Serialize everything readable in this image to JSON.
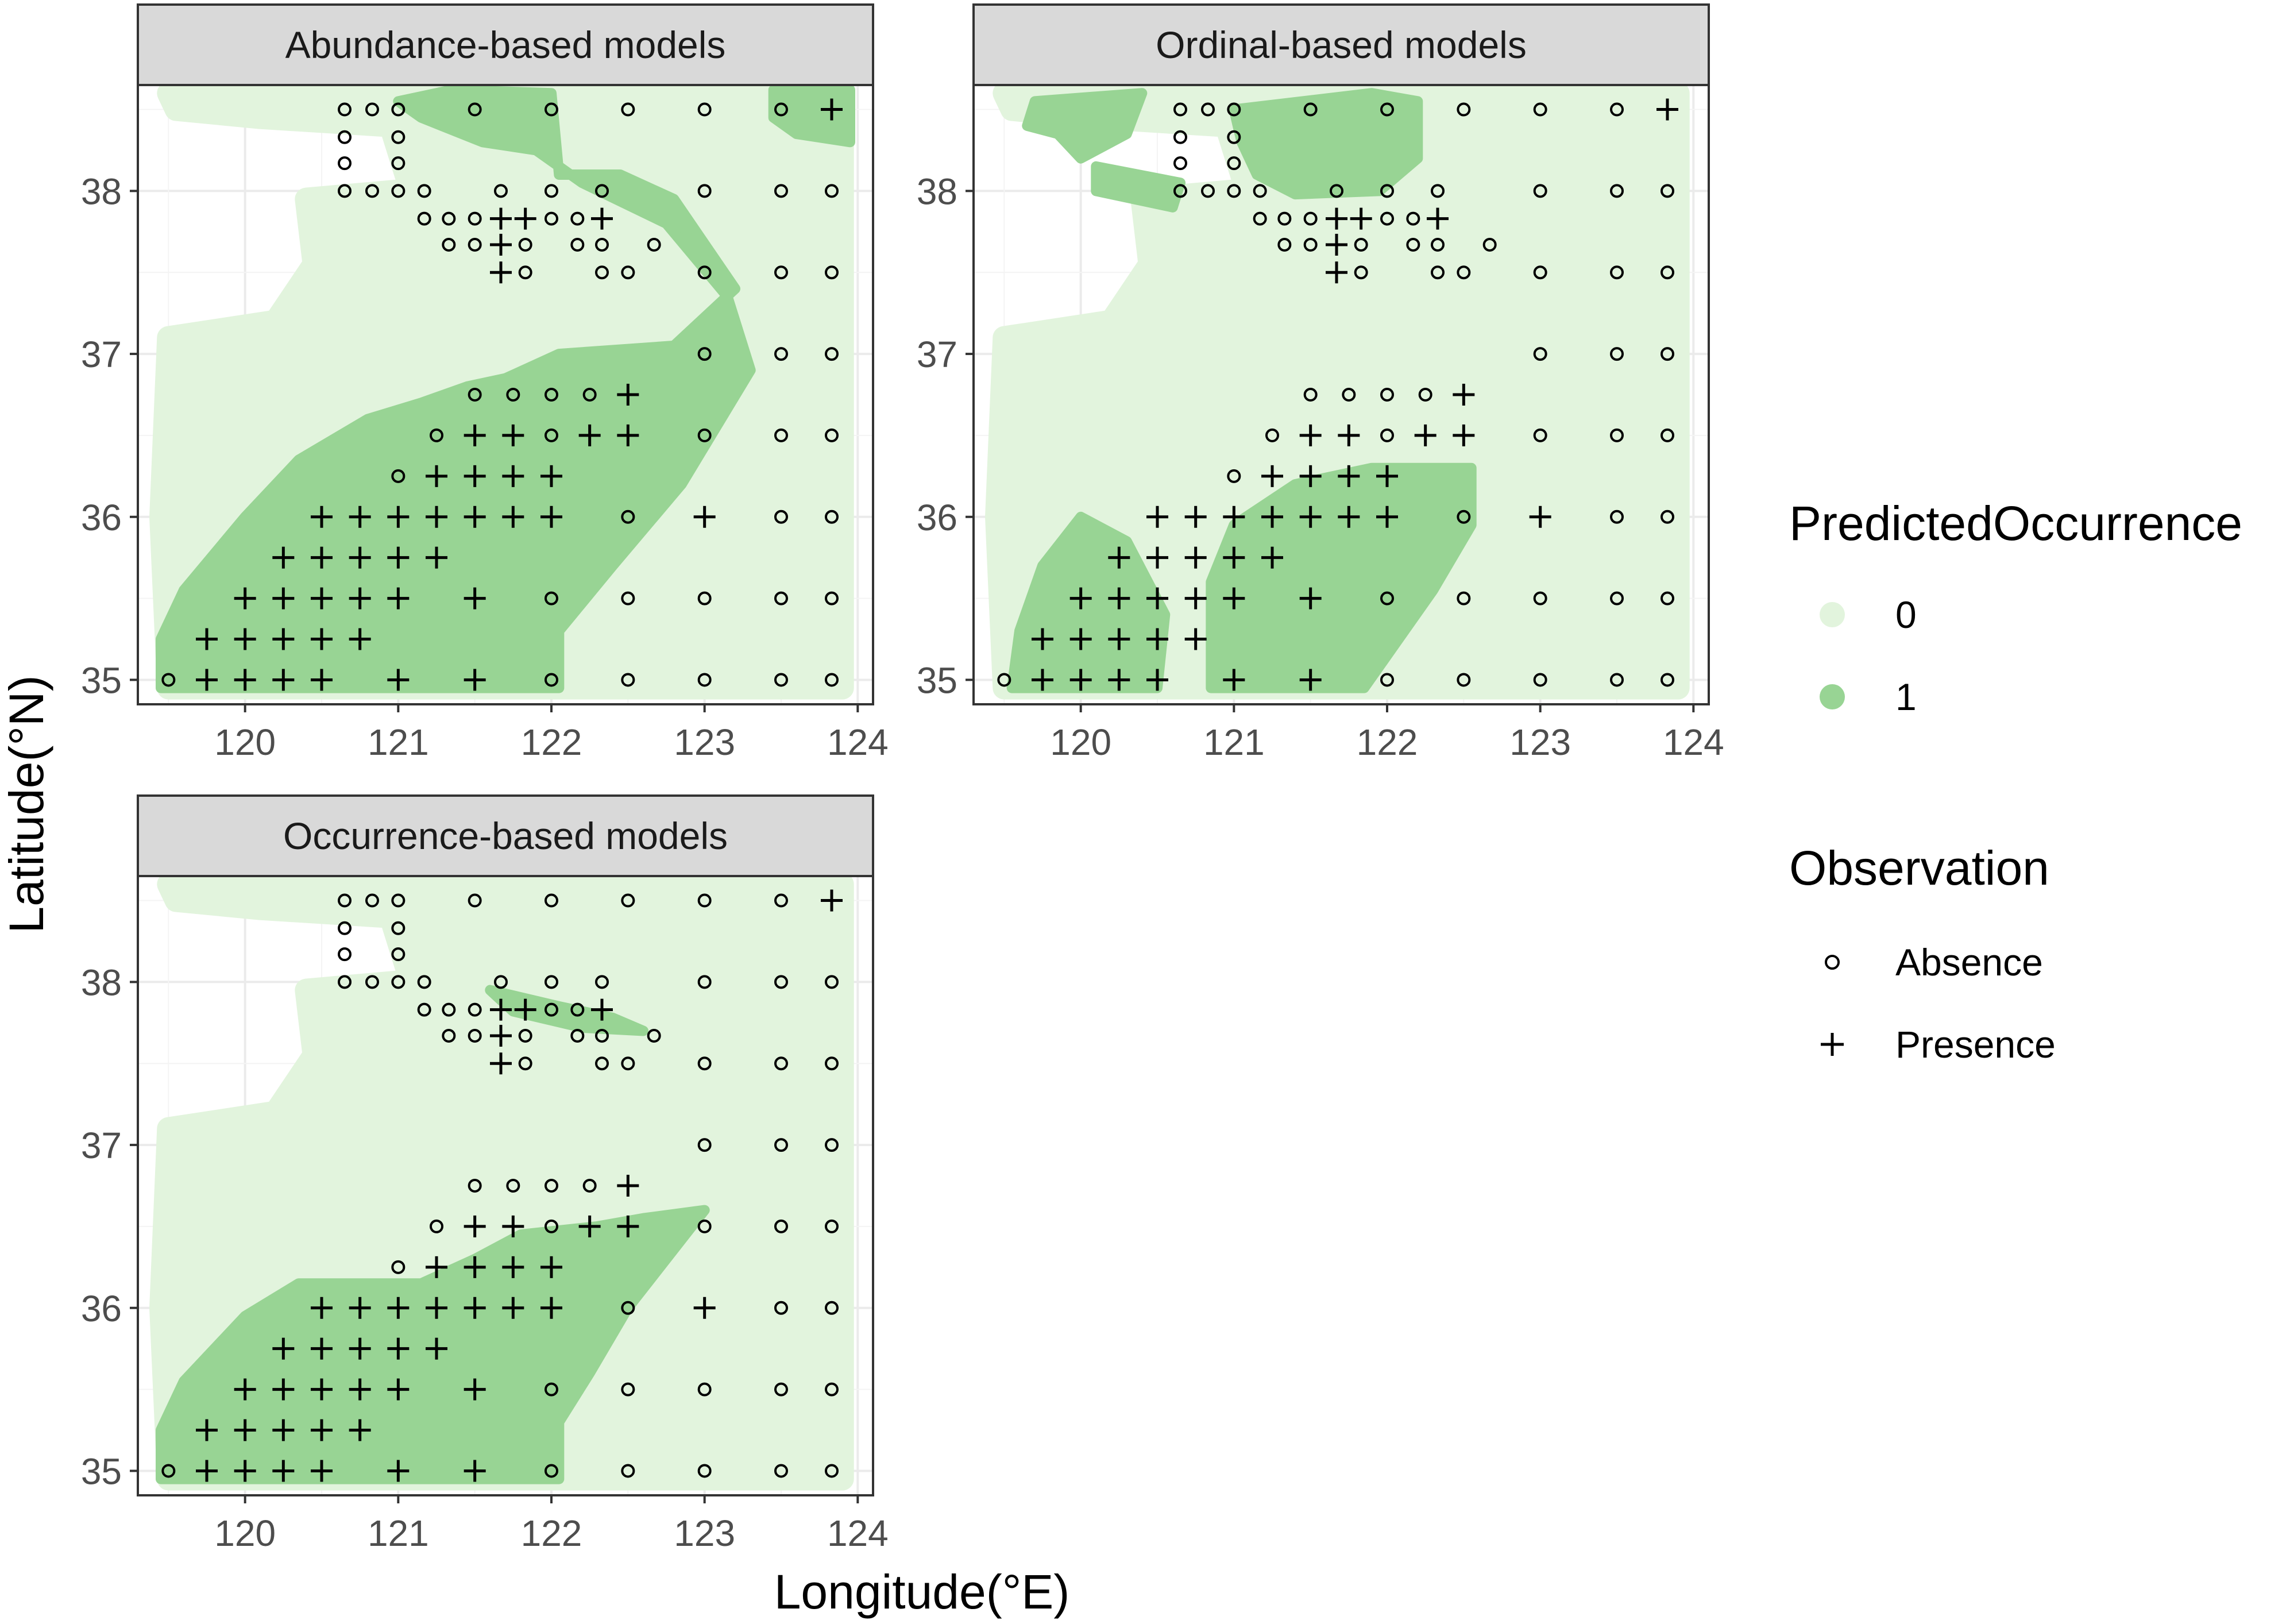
{
  "chart_data": {
    "type": "scatter",
    "facets": [
      {
        "id": "abundance",
        "title": "Abundance-based models"
      },
      {
        "id": "ordinal",
        "title": "Ordinal-based models"
      },
      {
        "id": "occurrence",
        "title": "Occurrence-based models"
      }
    ],
    "xlabel": "Longitude(°E)",
    "ylabel": "Latitude(°N)",
    "xlim": [
      119.3,
      124.1
    ],
    "ylim": [
      34.85,
      38.65
    ],
    "x_ticks": [
      120,
      121,
      122,
      123,
      124
    ],
    "y_ticks": [
      35,
      36,
      37,
      38
    ],
    "grid": true,
    "colors": {
      "predicted_0": "#e2f4dd",
      "predicted_1": "#98d494",
      "strip_fill": "#d9d9d9",
      "grid_major": "#ebebeb",
      "panel_border": "#333333",
      "marker": "#000000"
    },
    "legend": {
      "position": "right",
      "predicted": {
        "title": "PredictedOccurrence",
        "entries": [
          {
            "label": "0",
            "color": "#e2f4dd"
          },
          {
            "label": "1",
            "color": "#98d494"
          }
        ]
      },
      "observation": {
        "title": "Observation",
        "entries": [
          {
            "label": "Absence",
            "shape": "open-circle"
          },
          {
            "label": "Presence",
            "shape": "plus"
          }
        ]
      }
    },
    "observations": {
      "absence": [
        [
          120.65,
          38.5
        ],
        [
          120.83,
          38.5
        ],
        [
          121,
          38.5
        ],
        [
          121.5,
          38.5
        ],
        [
          122,
          38.5
        ],
        [
          122.5,
          38.5
        ],
        [
          123,
          38.5
        ],
        [
          123.5,
          38.5
        ],
        [
          120.65,
          38.33
        ],
        [
          121,
          38.33
        ],
        [
          120.65,
          38.17
        ],
        [
          121,
          38.17
        ],
        [
          120.65,
          38
        ],
        [
          120.83,
          38
        ],
        [
          121,
          38
        ],
        [
          121.17,
          38
        ],
        [
          121.67,
          38
        ],
        [
          122,
          38
        ],
        [
          122.33,
          38
        ],
        [
          123,
          38
        ],
        [
          123.5,
          38
        ],
        [
          123.83,
          38
        ],
        [
          121.17,
          37.83
        ],
        [
          121.33,
          37.83
        ],
        [
          121.5,
          37.83
        ],
        [
          122,
          37.83
        ],
        [
          122.17,
          37.83
        ],
        [
          121.33,
          37.67
        ],
        [
          121.5,
          37.67
        ],
        [
          121.83,
          37.67
        ],
        [
          122.17,
          37.67
        ],
        [
          122.33,
          37.67
        ],
        [
          122.67,
          37.67
        ],
        [
          121.83,
          37.5
        ],
        [
          122.33,
          37.5
        ],
        [
          122.5,
          37.5
        ],
        [
          123,
          37.5
        ],
        [
          123.5,
          37.5
        ],
        [
          123.83,
          37.5
        ],
        [
          123,
          37
        ],
        [
          123.5,
          37
        ],
        [
          123.83,
          37
        ],
        [
          121.5,
          36.75
        ],
        [
          121.75,
          36.75
        ],
        [
          122,
          36.75
        ],
        [
          122.25,
          36.75
        ],
        [
          121.25,
          36.5
        ],
        [
          122,
          36.5
        ],
        [
          123,
          36.5
        ],
        [
          123.5,
          36.5
        ],
        [
          123.83,
          36.5
        ],
        [
          121,
          36.25
        ],
        [
          122.5,
          36
        ],
        [
          123.5,
          36
        ],
        [
          123.83,
          36
        ],
        [
          122,
          35.5
        ],
        [
          122.5,
          35.5
        ],
        [
          123,
          35.5
        ],
        [
          123.5,
          35.5
        ],
        [
          123.83,
          35.5
        ],
        [
          119.5,
          35
        ],
        [
          122,
          35
        ],
        [
          122.5,
          35
        ],
        [
          123,
          35
        ],
        [
          123.5,
          35
        ],
        [
          123.83,
          35
        ]
      ],
      "presence": [
        [
          123.83,
          38.5
        ],
        [
          121.67,
          37.83
        ],
        [
          121.83,
          37.83
        ],
        [
          122.33,
          37.83
        ],
        [
          121.67,
          37.67
        ],
        [
          121.67,
          37.5
        ],
        [
          122.5,
          36.75
        ],
        [
          121.5,
          36.5
        ],
        [
          121.75,
          36.5
        ],
        [
          122.25,
          36.5
        ],
        [
          122.5,
          36.5
        ],
        [
          121.25,
          36.25
        ],
        [
          121.5,
          36.25
        ],
        [
          121.75,
          36.25
        ],
        [
          122,
          36.25
        ],
        [
          120.5,
          36
        ],
        [
          120.75,
          36
        ],
        [
          121,
          36
        ],
        [
          121.25,
          36
        ],
        [
          121.5,
          36
        ],
        [
          121.75,
          36
        ],
        [
          122,
          36
        ],
        [
          123,
          36
        ],
        [
          120.25,
          35.75
        ],
        [
          120.5,
          35.75
        ],
        [
          120.75,
          35.75
        ],
        [
          121,
          35.75
        ],
        [
          121.25,
          35.75
        ],
        [
          120,
          35.5
        ],
        [
          120.25,
          35.5
        ],
        [
          120.5,
          35.5
        ],
        [
          120.75,
          35.5
        ],
        [
          121,
          35.5
        ],
        [
          121.5,
          35.5
        ],
        [
          119.75,
          35.25
        ],
        [
          120,
          35.25
        ],
        [
          120.25,
          35.25
        ],
        [
          120.5,
          35.25
        ],
        [
          120.75,
          35.25
        ],
        [
          119.75,
          35
        ],
        [
          120,
          35
        ],
        [
          120.25,
          35
        ],
        [
          120.5,
          35
        ],
        [
          121,
          35
        ],
        [
          121.5,
          35
        ]
      ]
    },
    "predicted_regions": {
      "abundance": {
        "class0": [
          [
            [
              119.5,
              38.6
            ],
            [
              123.9,
              38.6
            ],
            [
              123.9,
              34.95
            ],
            [
              119.5,
              34.95
            ],
            [
              119.45,
              36.0
            ],
            [
              119.5,
              37.1
            ],
            [
              120.2,
              37.2
            ],
            [
              120.45,
              37.55
            ],
            [
              120.4,
              37.95
            ],
            [
              121.0,
              38.0
            ],
            [
              121.1,
              37.95
            ],
            [
              120.95,
              38.4
            ],
            [
              120.1,
              38.45
            ],
            [
              119.55,
              38.5
            ]
          ]
        ],
        "class1": [
          [
            [
              119.45,
              34.95
            ],
            [
              122.05,
              34.95
            ],
            [
              122.05,
              35.3
            ],
            [
              122.4,
              35.7
            ],
            [
              122.85,
              36.2
            ],
            [
              123.3,
              36.9
            ],
            [
              123.15,
              37.35
            ],
            [
              122.75,
              37.8
            ],
            [
              122.2,
              38.05
            ],
            [
              121.9,
              38.25
            ],
            [
              121.55,
              38.3
            ],
            [
              121.15,
              38.45
            ],
            [
              121.0,
              38.55
            ],
            [
              121.35,
              38.62
            ],
            [
              122.0,
              38.6
            ],
            [
              122.05,
              38.1
            ],
            [
              122.45,
              38.1
            ],
            [
              122.8,
              37.95
            ],
            [
              123.2,
              37.4
            ],
            [
              122.8,
              37.05
            ],
            [
              122.05,
              37.0
            ],
            [
              121.7,
              36.85
            ],
            [
              121.45,
              36.8
            ],
            [
              121.15,
              36.7
            ],
            [
              120.8,
              36.6
            ],
            [
              120.35,
              36.35
            ],
            [
              120.0,
              36.0
            ],
            [
              119.6,
              35.55
            ],
            [
              119.45,
              35.25
            ]
          ],
          [
            [
              123.45,
              38.62
            ],
            [
              123.95,
              38.62
            ],
            [
              123.95,
              38.3
            ],
            [
              123.6,
              38.35
            ],
            [
              123.45,
              38.45
            ]
          ]
        ]
      },
      "ordinal": {
        "class0": [
          [
            [
              119.5,
              38.6
            ],
            [
              123.9,
              38.6
            ],
            [
              123.9,
              34.95
            ],
            [
              119.5,
              34.95
            ],
            [
              119.45,
              36.0
            ],
            [
              119.5,
              37.1
            ],
            [
              120.2,
              37.2
            ],
            [
              120.45,
              37.55
            ],
            [
              120.4,
              37.95
            ],
            [
              121.0,
              38.0
            ],
            [
              121.1,
              37.95
            ],
            [
              120.95,
              38.4
            ],
            [
              120.1,
              38.45
            ],
            [
              119.55,
              38.5
            ]
          ]
        ],
        "class1": [
          [
            [
              119.7,
              38.55
            ],
            [
              120.4,
              38.6
            ],
            [
              120.3,
              38.35
            ],
            [
              120.0,
              38.2
            ],
            [
              119.85,
              38.35
            ],
            [
              119.65,
              38.4
            ]
          ],
          [
            [
              120.1,
              38.15
            ],
            [
              120.65,
              38.05
            ],
            [
              120.6,
              37.9
            ],
            [
              120.1,
              38.0
            ]
          ],
          [
            [
              121.0,
              38.5
            ],
            [
              121.9,
              38.6
            ],
            [
              122.2,
              38.55
            ],
            [
              122.2,
              38.2
            ],
            [
              121.95,
              38.0
            ],
            [
              121.4,
              37.98
            ],
            [
              121.15,
              38.1
            ],
            [
              121.05,
              38.3
            ]
          ],
          [
            [
              120.85,
              34.95
            ],
            [
              121.85,
              34.95
            ],
            [
              122.3,
              35.55
            ],
            [
              122.55,
              35.95
            ],
            [
              122.55,
              36.3
            ],
            [
              121.9,
              36.3
            ],
            [
              121.4,
              36.2
            ],
            [
              121.0,
              35.95
            ],
            [
              120.85,
              35.6
            ]
          ],
          [
            [
              119.55,
              34.95
            ],
            [
              120.5,
              34.95
            ],
            [
              120.55,
              35.4
            ],
            [
              120.3,
              35.85
            ],
            [
              120.0,
              36.0
            ],
            [
              119.75,
              35.7
            ],
            [
              119.6,
              35.3
            ]
          ]
        ]
      },
      "occurrence": {
        "class0": [
          [
            [
              119.5,
              38.6
            ],
            [
              123.9,
              38.6
            ],
            [
              123.9,
              34.95
            ],
            [
              119.5,
              34.95
            ],
            [
              119.45,
              36.0
            ],
            [
              119.5,
              37.1
            ],
            [
              120.2,
              37.2
            ],
            [
              120.45,
              37.55
            ],
            [
              120.4,
              37.95
            ],
            [
              121.0,
              38.0
            ],
            [
              121.1,
              37.95
            ],
            [
              120.95,
              38.4
            ],
            [
              120.1,
              38.45
            ],
            [
              119.55,
              38.5
            ]
          ]
        ],
        "class1": [
          [
            [
              119.45,
              34.95
            ],
            [
              122.05,
              34.95
            ],
            [
              122.05,
              35.3
            ],
            [
              122.25,
              35.6
            ],
            [
              122.5,
              36.0
            ],
            [
              122.75,
              36.3
            ],
            [
              123.0,
              36.6
            ],
            [
              122.6,
              36.55
            ],
            [
              122.3,
              36.5
            ],
            [
              121.8,
              36.45
            ],
            [
              121.5,
              36.3
            ],
            [
              121.15,
              36.15
            ],
            [
              120.75,
              36.15
            ],
            [
              120.35,
              36.15
            ],
            [
              120.0,
              35.95
            ],
            [
              119.6,
              35.55
            ],
            [
              119.45,
              35.25
            ]
          ],
          [
            [
              121.6,
              37.95
            ],
            [
              122.05,
              37.85
            ],
            [
              122.4,
              37.78
            ],
            [
              122.6,
              37.7
            ],
            [
              122.2,
              37.72
            ],
            [
              121.75,
              37.82
            ]
          ]
        ]
      }
    }
  }
}
